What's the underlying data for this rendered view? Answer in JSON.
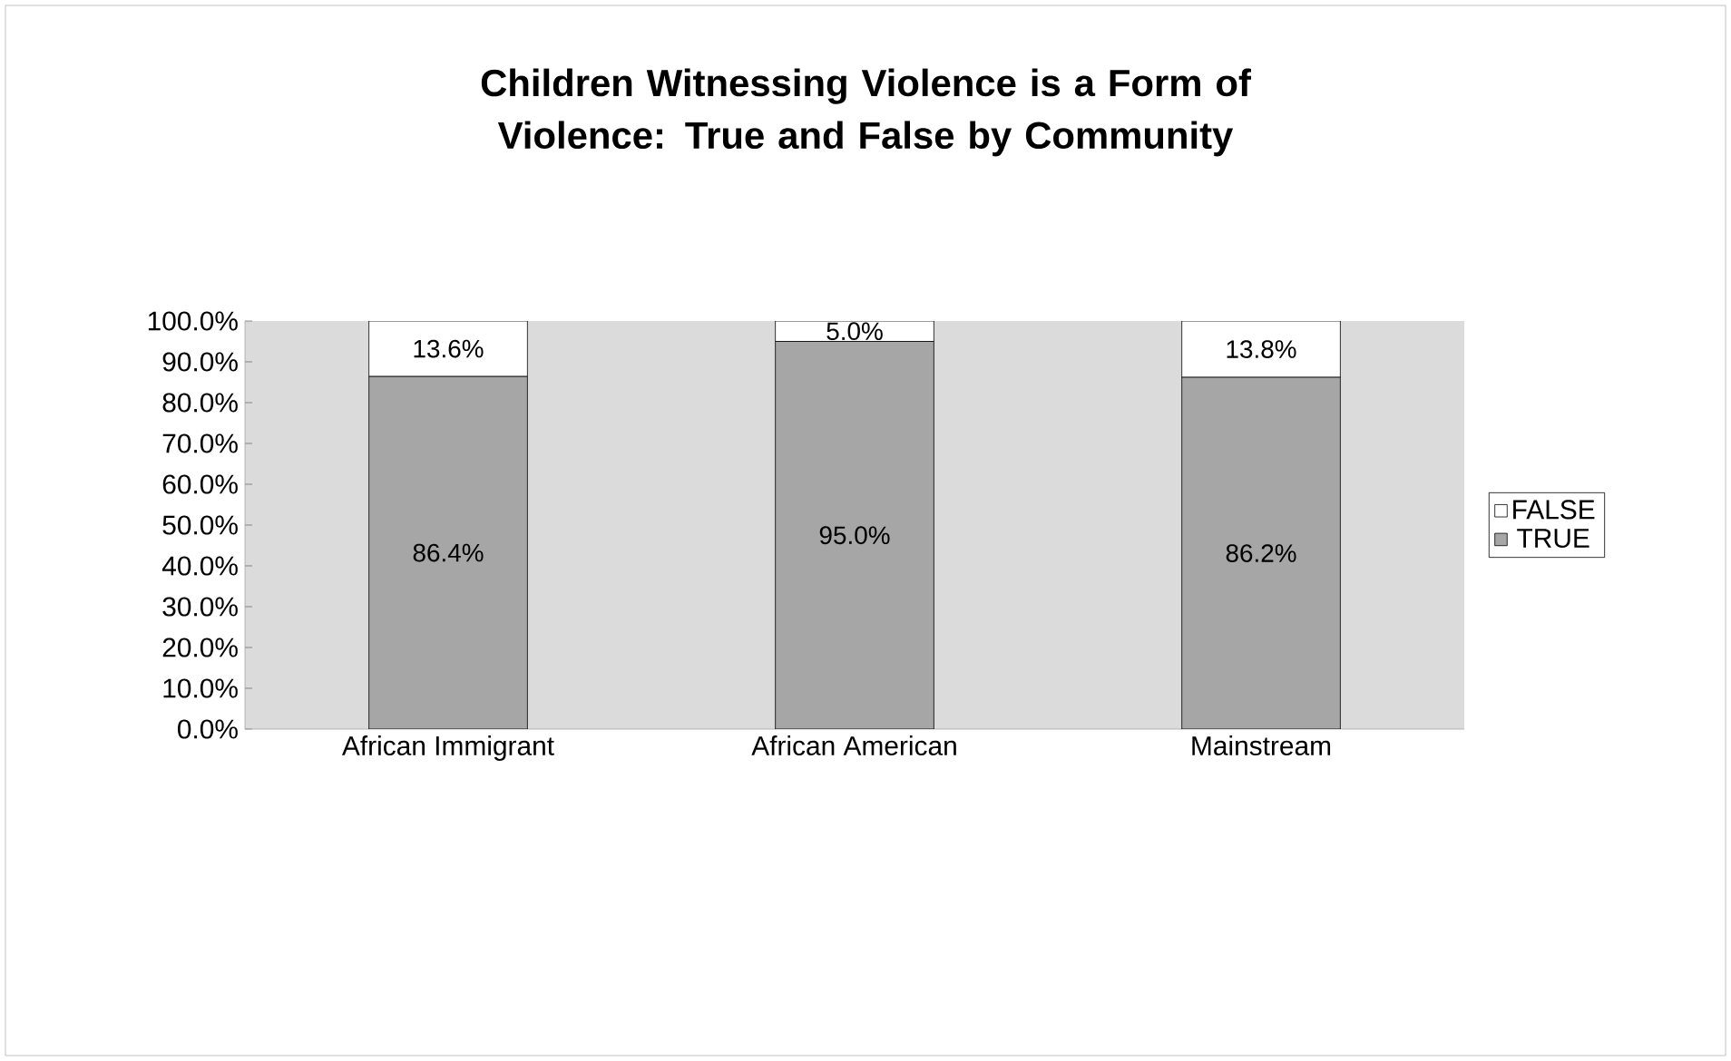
{
  "chart_data": {
    "type": "bar",
    "stacked": true,
    "title": "Children Witnessing Violence is a Form of Violence: True and False by Community",
    "categories": [
      "African Immigrant",
      "African American",
      "Mainstream"
    ],
    "series": [
      {
        "name": "TRUE",
        "color": "#a6a6a6",
        "values": [
          86.4,
          95.0,
          86.2
        ],
        "value_labels": [
          "86.4%",
          "95.0%",
          "86.2%"
        ]
      },
      {
        "name": "FALSE",
        "color": "#ffffff",
        "values": [
          13.6,
          5.0,
          13.8
        ],
        "value_labels": [
          "13.6%",
          "5.0%",
          "13.8%"
        ]
      }
    ],
    "ylim": [
      0,
      100
    ],
    "yticks": [
      {
        "value": 0,
        "label": "0.0%"
      },
      {
        "value": 10,
        "label": "10.0%"
      },
      {
        "value": 20,
        "label": "20.0%"
      },
      {
        "value": 30,
        "label": "30.0%"
      },
      {
        "value": 40,
        "label": "40.0%"
      },
      {
        "value": 50,
        "label": "50.0%"
      },
      {
        "value": 60,
        "label": "60.0%"
      },
      {
        "value": 70,
        "label": "70.0%"
      },
      {
        "value": 80,
        "label": "80.0%"
      },
      {
        "value": 90,
        "label": "90.0%"
      },
      {
        "value": 100,
        "label": "100.0%"
      }
    ],
    "legend": "right"
  }
}
